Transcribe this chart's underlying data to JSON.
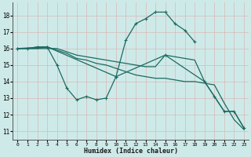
{
  "xlabel": "Humidex (Indice chaleur)",
  "bg_color": "#ceeae8",
  "line_color": "#1a6b62",
  "grid_color": "#b0d8d4",
  "xlim": [
    -0.5,
    23.5
  ],
  "ylim": [
    10.5,
    18.8
  ],
  "xticks": [
    0,
    1,
    2,
    3,
    4,
    5,
    6,
    7,
    8,
    9,
    10,
    11,
    12,
    13,
    14,
    15,
    16,
    17,
    18,
    19,
    20,
    21,
    22,
    23
  ],
  "yticks": [
    11,
    12,
    13,
    14,
    15,
    16,
    17,
    18
  ],
  "lines": [
    {
      "x": [
        0,
        1,
        2,
        3,
        4,
        5,
        6,
        7,
        8,
        9,
        10,
        11,
        12,
        13,
        14,
        15,
        16,
        17,
        18
      ],
      "y": [
        16.0,
        16.0,
        16.1,
        16.1,
        15.0,
        13.6,
        12.9,
        13.1,
        12.9,
        13.0,
        14.3,
        16.5,
        17.5,
        17.8,
        18.2,
        18.2,
        17.5,
        17.1,
        16.4
      ],
      "has_marker": true
    },
    {
      "x": [
        0,
        1,
        2,
        3,
        4,
        5,
        6,
        7,
        8,
        9,
        10,
        11,
        12,
        13,
        14,
        15,
        16,
        17,
        18,
        19,
        20,
        21,
        22,
        23
      ],
      "y": [
        16.0,
        16.0,
        16.0,
        16.0,
        16.0,
        15.8,
        15.6,
        15.5,
        15.4,
        15.3,
        15.2,
        15.1,
        15.0,
        14.9,
        14.9,
        15.6,
        15.5,
        15.4,
        15.3,
        14.0,
        13.1,
        12.2,
        12.2,
        11.2
      ],
      "has_marker": false
    },
    {
      "x": [
        0,
        1,
        2,
        3,
        4,
        5,
        6,
        7,
        8,
        9,
        10,
        11,
        12,
        13,
        14,
        15,
        16,
        17,
        18,
        19,
        20,
        21,
        22,
        23
      ],
      "y": [
        16.0,
        16.0,
        16.0,
        16.1,
        15.9,
        15.7,
        15.4,
        15.3,
        15.1,
        15.0,
        14.8,
        14.6,
        14.4,
        14.3,
        14.2,
        14.2,
        14.1,
        14.0,
        14.0,
        13.9,
        13.8,
        12.7,
        11.7,
        11.1
      ],
      "has_marker": false
    },
    {
      "x": [
        0,
        3,
        10,
        15,
        19,
        20,
        21,
        22,
        23
      ],
      "y": [
        16.0,
        16.1,
        14.3,
        15.6,
        14.0,
        13.1,
        12.2,
        12.2,
        11.2
      ],
      "has_marker": true
    }
  ]
}
